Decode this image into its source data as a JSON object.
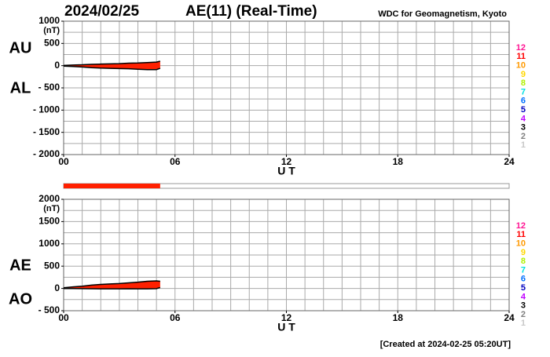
{
  "header": {
    "date": "2024/02/25",
    "title": "AE(11) (Real-Time)",
    "source": "WDC for Geomagnetism, Kyoto"
  },
  "footer": "[Created at 2024-02-25 05:20UT]",
  "station_legend": [
    {
      "name": "12",
      "color": "#ff1493"
    },
    {
      "name": "11",
      "color": "#ff0000"
    },
    {
      "name": "10",
      "color": "#ff9900"
    },
    {
      "name": "9",
      "color": "#ffd700"
    },
    {
      "name": "8",
      "color": "#b0f000"
    },
    {
      "name": "7",
      "color": "#00e0e0"
    },
    {
      "name": "6",
      "color": "#0070ff"
    },
    {
      "name": "5",
      "color": "#0000c0"
    },
    {
      "name": "4",
      "color": "#c000ff"
    },
    {
      "name": "3",
      "color": "#000000"
    },
    {
      "name": "2",
      "color": "#808080"
    },
    {
      "name": "1",
      "color": "#c8c8c8"
    }
  ],
  "coverage": {
    "x": [
      0,
      5.2
    ],
    "color": "#ff2000"
  },
  "chart_data": [
    {
      "type": "line",
      "y_unit": "(nT)",
      "x_label": "U T",
      "fill": "#ff2000",
      "xlim": [
        0,
        24
      ],
      "xticks": [
        {
          "value": 0,
          "label": "00"
        },
        {
          "value": 6,
          "label": "06"
        },
        12,
        18,
        24
      ],
      "grid_step_x": 1,
      "ylim": [
        -2000,
        1000
      ],
      "yticks": [
        1000,
        500,
        0,
        {
          "value": -500,
          "label": "- 500"
        },
        {
          "value": -1000,
          "label": "- 1000"
        },
        {
          "value": -1500,
          "label": "- 1500"
        },
        {
          "value": -2000,
          "label": "- 2000"
        }
      ],
      "grid_step_y": 250,
      "x": [
        0,
        0.5,
        1,
        1.5,
        2,
        2.5,
        3,
        3.5,
        4,
        4.5,
        5,
        5.2
      ],
      "series": [
        {
          "name": "AU",
          "color": "#000000",
          "values": [
            5,
            15,
            20,
            30,
            35,
            40,
            45,
            55,
            60,
            70,
            80,
            100
          ]
        },
        {
          "name": "AL",
          "color": "#000000",
          "values": [
            -10,
            -20,
            -30,
            -45,
            -55,
            -60,
            -65,
            -70,
            -80,
            -90,
            -90,
            -60
          ]
        }
      ]
    },
    {
      "type": "line",
      "y_unit": "(nT)",
      "x_label": "U T",
      "fill": "#ff2000",
      "xlim": [
        0,
        24
      ],
      "xticks": [
        {
          "value": 0,
          "label": "00"
        },
        {
          "value": 6,
          "label": "06"
        },
        12,
        18,
        24
      ],
      "grid_step_x": 1,
      "ylim": [
        -500,
        2000
      ],
      "yticks": [
        2000,
        1500,
        1000,
        500,
        0,
        {
          "value": -500,
          "label": "- 500"
        }
      ],
      "grid_step_y": 250,
      "x": [
        0,
        0.5,
        1,
        1.5,
        2,
        2.5,
        3,
        3.5,
        4,
        4.5,
        5,
        5.2
      ],
      "series": [
        {
          "name": "AE",
          "color": "#000000",
          "values": [
            15,
            35,
            50,
            75,
            90,
            100,
            110,
            125,
            140,
            160,
            170,
            160
          ]
        },
        {
          "name": "AO",
          "color": "#000000",
          "values": [
            -2.5,
            -2.5,
            -5,
            -7.5,
            -10,
            -10,
            -10,
            -7.5,
            -10,
            -10,
            -5,
            20
          ]
        }
      ]
    }
  ]
}
